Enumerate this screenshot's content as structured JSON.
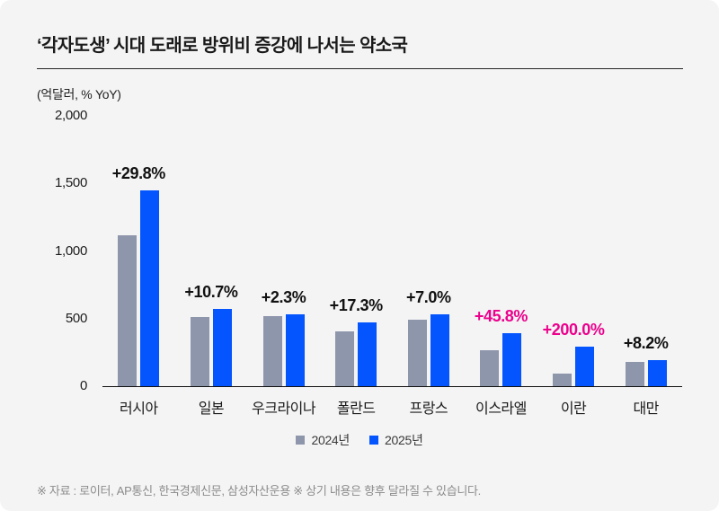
{
  "page": {
    "title": "‘각자도생’ 시대 도래로 방위비 증강에 나서는 약소국",
    "footer": "※ 자료 : 로이터, AP통신, 한국경제신문, 삼성자산운용 ※ 상기 내용은 향후 달라질 수 있습니다."
  },
  "colors": {
    "background": "#f4f4f5",
    "bar_2024": "#8e96ac",
    "bar_2025": "#0455fd",
    "label_dark": "#111111",
    "label_highlight": "#ec008c",
    "axis_line": "#111111",
    "footer_text": "#8b8b8b"
  },
  "chart_data": {
    "type": "bar",
    "title": "‘각자도생’ 시대 도래로 방위비 증강에 나서는 약소국",
    "unit_label": "(억달러, % YoY)",
    "xlabel": "",
    "ylabel": "억달러",
    "ylim": [
      0,
      2000
    ],
    "grid": false,
    "legend_position": "bottom",
    "categories": [
      "러시아",
      "일본",
      "우크라이나",
      "폴란드",
      "프랑스",
      "이스라엘",
      "이란",
      "대만"
    ],
    "series": [
      {
        "name": "2024년",
        "color": "#8e96ac",
        "values": [
          1120,
          520,
          525,
          410,
          500,
          275,
          100,
          185
        ]
      },
      {
        "name": "2025년",
        "color": "#0455fd",
        "values": [
          1454,
          576,
          537,
          481,
          535,
          401,
          300,
          200
        ]
      }
    ],
    "growth_labels": [
      {
        "text": "+29.8%",
        "highlight": false
      },
      {
        "text": "+10.7%",
        "highlight": false
      },
      {
        "text": "+2.3%",
        "highlight": false
      },
      {
        "text": "+17.3%",
        "highlight": false
      },
      {
        "text": "+7.0%",
        "highlight": false
      },
      {
        "text": "+45.8%",
        "highlight": true
      },
      {
        "text": "+200.0%",
        "highlight": true
      },
      {
        "text": "+8.2%",
        "highlight": false
      }
    ],
    "yticks": [
      {
        "value": 0,
        "label": "0"
      },
      {
        "value": 500,
        "label": "500"
      },
      {
        "value": 1000,
        "label": "1,000"
      },
      {
        "value": 1500,
        "label": "1,500"
      },
      {
        "value": 2000,
        "label": "2,000"
      }
    ]
  }
}
